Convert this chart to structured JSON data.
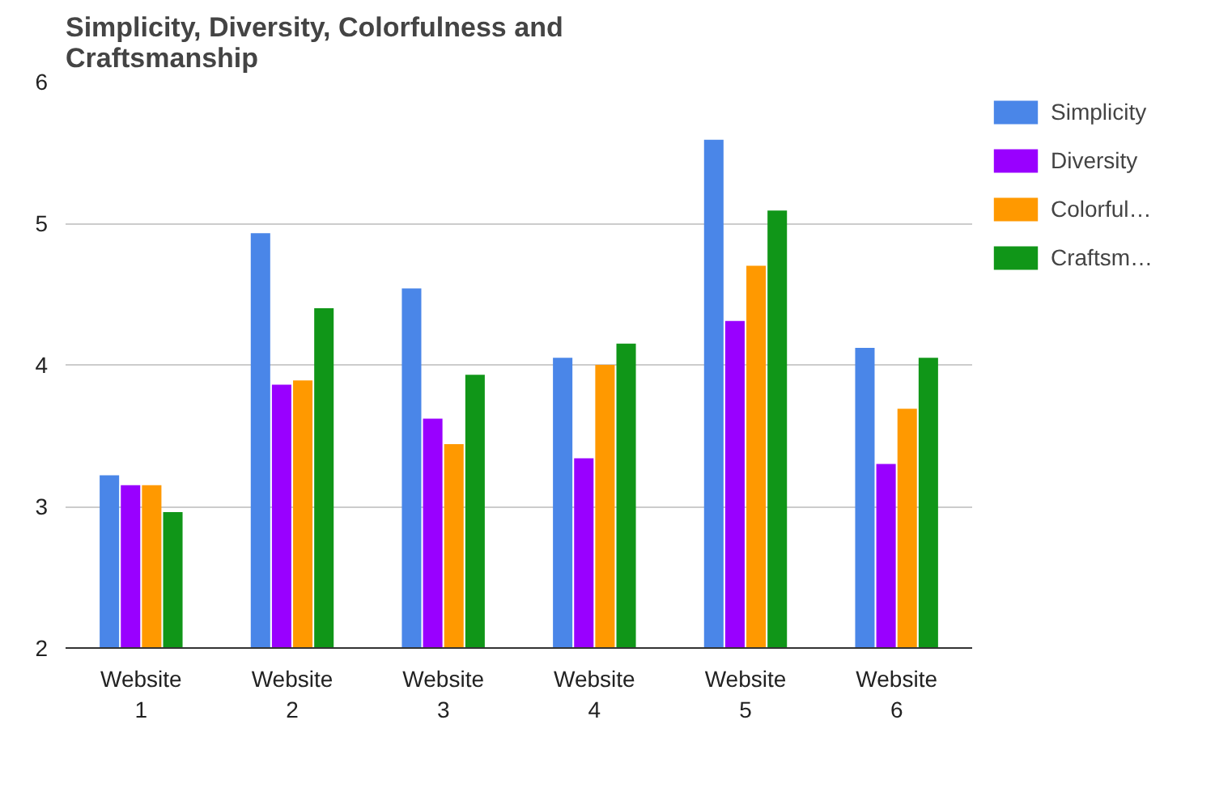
{
  "chart_data": {
    "type": "bar",
    "title": "Simplicity, Diversity, Colorfulness and Craftsmanship",
    "categories": [
      "Website 1",
      "Website 2",
      "Website 3",
      "Website 4",
      "Website 5",
      "Website 6"
    ],
    "series": [
      {
        "name": "Simplicity",
        "color": "#4a86e8",
        "values": [
          3.22,
          4.93,
          4.54,
          4.05,
          5.59,
          4.12
        ]
      },
      {
        "name": "Diversity",
        "color": "#9900ff",
        "values": [
          3.15,
          3.86,
          3.62,
          3.34,
          4.31,
          3.3
        ]
      },
      {
        "name": "Colorful…",
        "color": "#ff9900",
        "values": [
          3.15,
          3.89,
          3.44,
          4.0,
          4.7,
          3.69
        ]
      },
      {
        "name": "Craftsm…",
        "color": "#109618",
        "values": [
          2.96,
          4.4,
          3.93,
          4.15,
          5.09,
          4.05
        ]
      }
    ],
    "ylim": [
      2,
      6
    ],
    "yticks": [
      2,
      3,
      4,
      5,
      6
    ],
    "grid": "y",
    "legend": "right"
  }
}
